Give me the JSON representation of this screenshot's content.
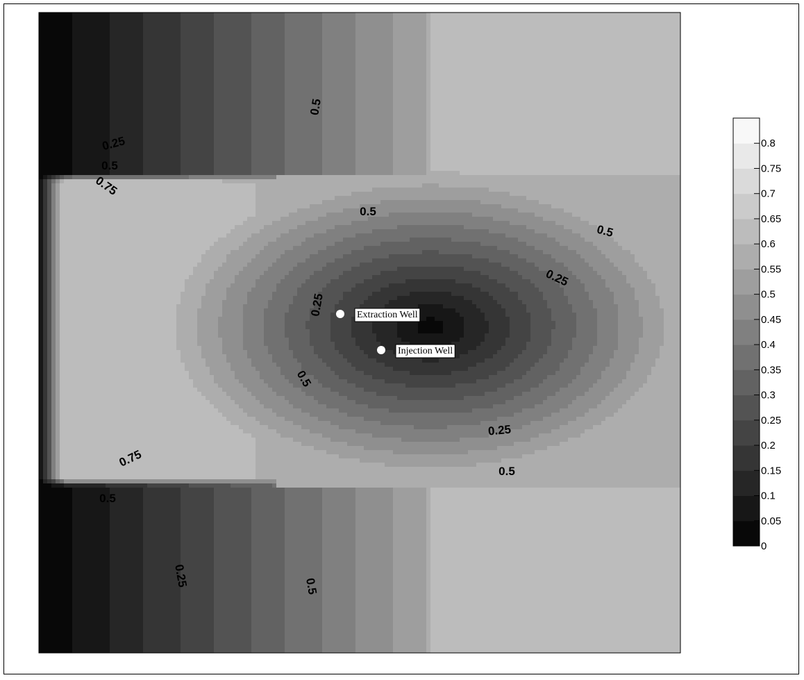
{
  "chart_data": {
    "type": "contour",
    "title": "",
    "xlabel": "",
    "ylabel": "",
    "colormap": "grayscale",
    "levels": [
      0,
      0.05,
      0.1,
      0.15,
      0.2,
      0.25,
      0.3,
      0.35,
      0.4,
      0.45,
      0.5,
      0.55,
      0.6,
      0.65,
      0.7,
      0.75,
      0.8
    ],
    "colorbar_ticks": [
      "0",
      "0.05",
      "0.1",
      "0.15",
      "0.2",
      "0.25",
      "0.3",
      "0.35",
      "0.4",
      "0.45",
      "0.5",
      "0.55",
      "0.6",
      "0.65",
      "0.7",
      "0.75",
      "0.8"
    ],
    "contour_labels": [
      "0.25",
      "0.5",
      "0.75",
      "0.5",
      "0.5",
      "0.5",
      "0.25",
      "0.25",
      "0.5",
      "0.25",
      "0.5",
      "0.75",
      "0.5",
      "0.25",
      "0.5"
    ],
    "wells": [
      {
        "name": "Extraction Well"
      },
      {
        "name": "Injection Well"
      }
    ],
    "legend_position": "right"
  }
}
